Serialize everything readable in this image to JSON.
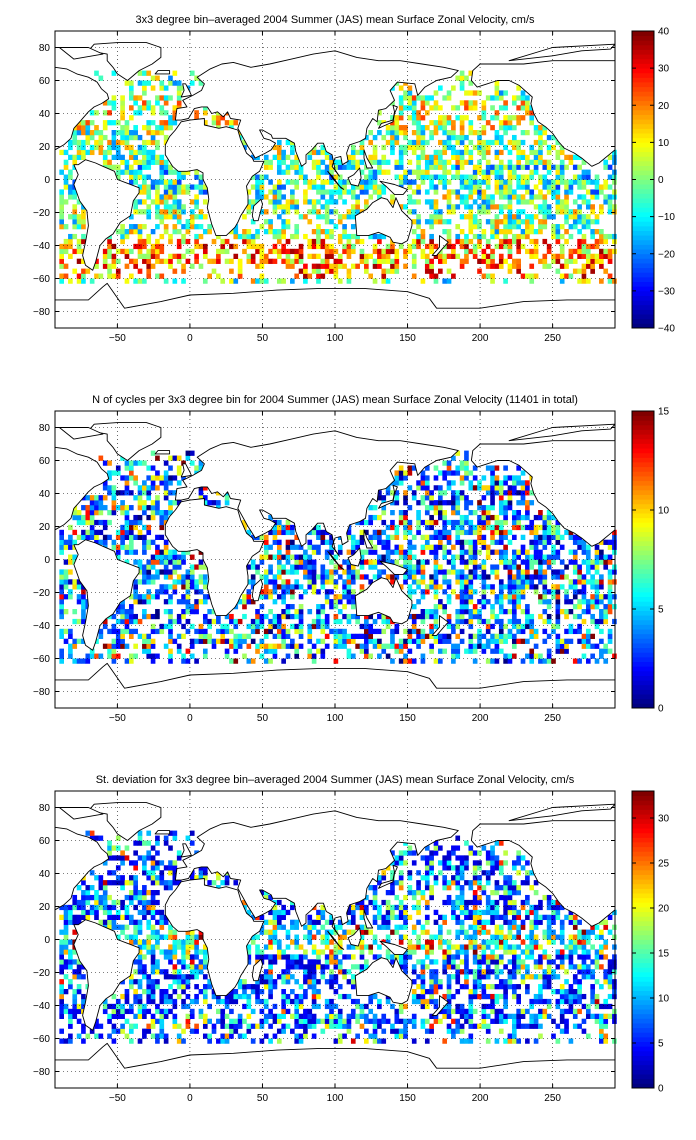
{
  "chart_data": [
    {
      "type": "heatmap",
      "title": "3x3 degree bin–averaged 2004 Summer (JAS) mean Surface Zonal Velocity, cm/s",
      "xlabel": "",
      "ylabel": "",
      "x_ticks": [
        -50,
        0,
        50,
        100,
        150,
        200,
        250
      ],
      "y_ticks": [
        80,
        60,
        40,
        20,
        0,
        -20,
        -40,
        -60,
        -80
      ],
      "xlim": [
        -93,
        293
      ],
      "ylim": [
        -90,
        90
      ],
      "grid": true,
      "colorbar": {
        "min": -40,
        "max": 40,
        "ticks": [
          40,
          30,
          20,
          10,
          0,
          -10,
          -20,
          -30,
          -40
        ],
        "colormap": "jet"
      },
      "bin_size_deg": 3,
      "seed": 11,
      "field": "velocity"
    },
    {
      "type": "heatmap",
      "title": "N of cycles per 3x3 degree bin for 2004 Summer (JAS) mean Surface Zonal Velocity (11401 in total)",
      "xlabel": "",
      "ylabel": "",
      "x_ticks": [
        -50,
        0,
        50,
        100,
        150,
        200,
        250
      ],
      "y_ticks": [
        80,
        60,
        40,
        20,
        0,
        -20,
        -40,
        -60,
        -80
      ],
      "xlim": [
        -93,
        293
      ],
      "ylim": [
        -90,
        90
      ],
      "grid": true,
      "colorbar": {
        "min": 0,
        "max": 15,
        "ticks": [
          15,
          10,
          5,
          0
        ],
        "colormap": "jet"
      },
      "bin_size_deg": 3,
      "seed": 23,
      "field": "count"
    },
    {
      "type": "heatmap",
      "title": "St. deviation for 3x3 degree bin–averaged 2004 Summer (JAS) mean Surface Zonal Velocity, cm/s",
      "xlabel": "",
      "ylabel": "",
      "x_ticks": [
        -50,
        0,
        50,
        100,
        150,
        200,
        250
      ],
      "y_ticks": [
        80,
        60,
        40,
        20,
        0,
        -20,
        -40,
        -60,
        -80
      ],
      "xlim": [
        -93,
        293
      ],
      "ylim": [
        -90,
        90
      ],
      "grid": true,
      "colorbar": {
        "min": 0,
        "max": 33,
        "ticks": [
          30,
          25,
          20,
          15,
          10,
          5,
          0
        ],
        "colormap": "jet"
      },
      "bin_size_deg": 3,
      "seed": 37,
      "field": "stdev"
    }
  ]
}
